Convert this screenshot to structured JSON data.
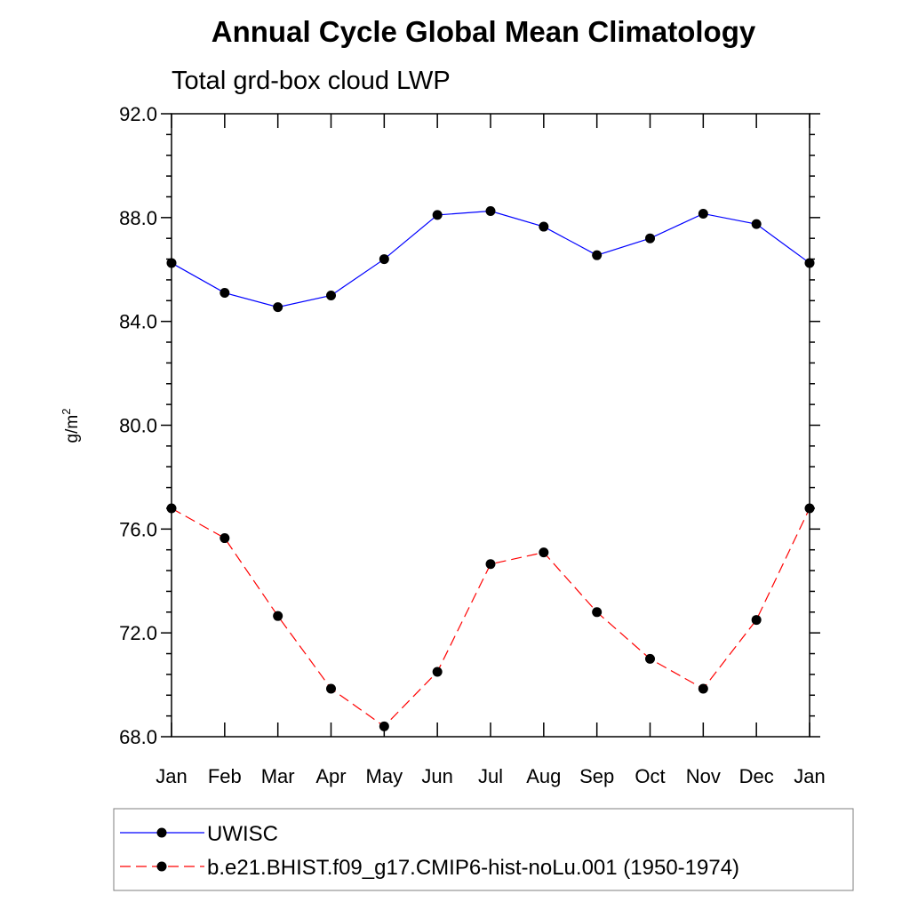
{
  "chart_data": {
    "type": "line",
    "title": "Annual Cycle Global Mean Climatology",
    "subtitle": "Total grd-box cloud LWP",
    "ylabel": "g/m",
    "ylabel_sup": "2",
    "xlabel": "",
    "categories": [
      "Jan",
      "Feb",
      "Mar",
      "Apr",
      "May",
      "Jun",
      "Jul",
      "Aug",
      "Sep",
      "Oct",
      "Nov",
      "Dec",
      "Jan"
    ],
    "ylim": [
      68.0,
      92.0
    ],
    "yticks": [
      68.0,
      72.0,
      76.0,
      80.0,
      84.0,
      88.0,
      92.0
    ],
    "ytick_labels": [
      "68.0",
      "72.0",
      "76.0",
      "80.0",
      "84.0",
      "88.0",
      "92.0"
    ],
    "grid": false,
    "legend_position": "bottom",
    "series": [
      {
        "name": "UWISC",
        "color": "#0000ff",
        "dashed": false,
        "values": [
          86.25,
          85.1,
          84.55,
          85.0,
          86.4,
          88.1,
          88.25,
          87.65,
          86.55,
          87.2,
          88.15,
          87.75,
          86.25
        ]
      },
      {
        "name": "b.e21.BHIST.f09_g17.CMIP6-hist-noLu.001 (1950-1974)",
        "color": "#ff0000",
        "dashed": true,
        "values": [
          76.8,
          75.65,
          72.65,
          69.85,
          68.4,
          70.5,
          74.65,
          75.1,
          72.8,
          71.0,
          69.85,
          72.5,
          76.8
        ]
      }
    ]
  }
}
